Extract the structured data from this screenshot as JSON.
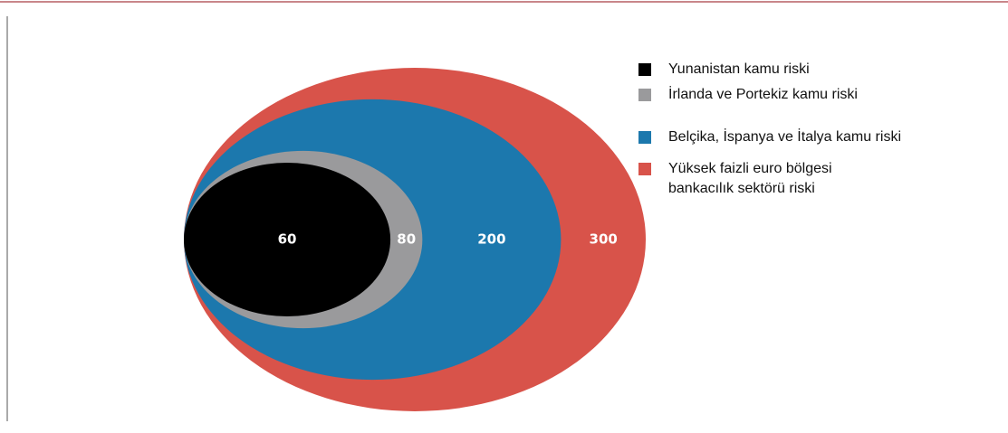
{
  "chart_data": {
    "type": "nested-ellipse",
    "categories": [
      "Yunanistan kamu riski",
      "İrlanda ve Portekiz kamu riski",
      "Belçika, İspanya ve İtalya kamu riski",
      "Yüksek faizli euro bölgesi\nbankacılık sektörü riski"
    ],
    "values": [
      60,
      80,
      200,
      300
    ],
    "colors": [
      "#000000",
      "#9a9a9c",
      "#1c78ad",
      "#d8534a"
    ]
  }
}
